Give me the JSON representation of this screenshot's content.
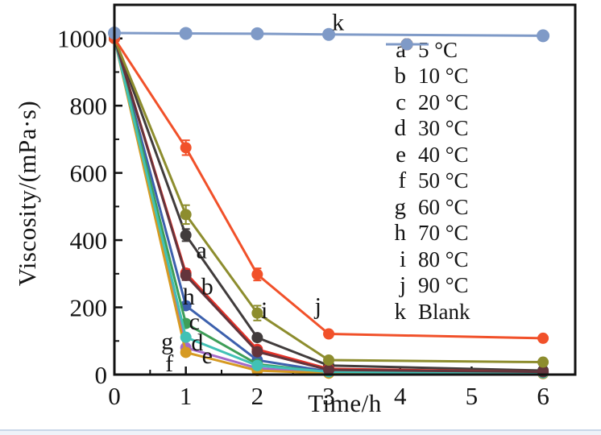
{
  "figure": {
    "background_color": "#ffffff",
    "axis_color": "#111111",
    "footer_strip_color": "#c9d7e8"
  },
  "chart_data": {
    "type": "line",
    "title": "",
    "xlabel": "Time/h",
    "ylabel": "Viscosity/(mPa·s)",
    "xlim": [
      0,
      6.45
    ],
    "ylim": [
      0,
      1100
    ],
    "x_ticks": [
      0,
      1,
      2,
      3,
      4,
      5,
      6
    ],
    "x_minor_ticks": [
      0.5,
      1.5,
      2.5,
      3.5,
      4.5,
      5.5
    ],
    "y_ticks": [
      0,
      200,
      400,
      600,
      800,
      1000
    ],
    "y_minor_ticks": [
      100,
      300,
      500,
      700,
      900
    ],
    "grid": "off",
    "legend_position": "upper right inside",
    "x": [
      0,
      1,
      2,
      3,
      6
    ],
    "series": [
      {
        "key": "a",
        "label": "5 °C",
        "color": "#413c3c",
        "values": [
          1000,
          415,
          110,
          27,
          12
        ],
        "errors": [
          0,
          18,
          10,
          0,
          0
        ]
      },
      {
        "key": "b",
        "label": "10 °C",
        "color": "#e53228",
        "values": [
          1000,
          302,
          75,
          17,
          8
        ],
        "errors": [
          0,
          12,
          0,
          0,
          0
        ]
      },
      {
        "key": "c",
        "label": "20 °C",
        "color": "#3c60ad",
        "values": [
          1000,
          205,
          43,
          9,
          5
        ],
        "errors": [
          0,
          10,
          0,
          0,
          0
        ]
      },
      {
        "key": "d",
        "label": "30 °C",
        "color": "#3e9e58",
        "values": [
          1000,
          152,
          31,
          7,
          4
        ],
        "errors": [
          0,
          9,
          0,
          0,
          0
        ]
      },
      {
        "key": "e",
        "label": "40 °C",
        "color": "#a46ac9",
        "values": [
          1000,
          80,
          19,
          5,
          3
        ],
        "errors": [
          0,
          6,
          0,
          0,
          0
        ]
      },
      {
        "key": "f",
        "label": "50 °C",
        "color": "#d69a22",
        "values": [
          1000,
          66,
          12,
          4,
          3
        ],
        "errors": [
          0,
          9,
          5,
          0,
          0
        ]
      },
      {
        "key": "g",
        "label": "60 °C",
        "color": "#41c1b5",
        "values": [
          1000,
          111,
          27,
          8,
          5
        ],
        "errors": [
          0,
          9,
          5,
          0,
          0
        ]
      },
      {
        "key": "h",
        "label": "70 °C",
        "color": "#63343c",
        "values": [
          1000,
          295,
          68,
          14,
          8
        ],
        "errors": [
          0,
          14,
          0,
          0,
          0
        ]
      },
      {
        "key": "i",
        "label": "80 °C",
        "color": "#8d8d2e",
        "values": [
          1000,
          476,
          183,
          43,
          37
        ],
        "errors": [
          0,
          28,
          22,
          8,
          0
        ]
      },
      {
        "key": "j",
        "label": "90 °C",
        "color": "#f1512a",
        "values": [
          1000,
          675,
          298,
          121,
          108
        ],
        "errors": [
          0,
          22,
          18,
          8,
          0
        ]
      },
      {
        "key": "k",
        "label": "Blank",
        "color": "#7f9ac7",
        "values": [
          1016,
          1015,
          1014,
          1012,
          1008
        ],
        "errors": [
          0,
          0,
          0,
          0,
          0
        ]
      }
    ],
    "annotations": [
      {
        "text": "a",
        "x": 1.22,
        "y": 370
      },
      {
        "text": "b",
        "x": 1.3,
        "y": 262
      },
      {
        "text": "c",
        "x": 1.12,
        "y": 158
      },
      {
        "text": "d",
        "x": 1.16,
        "y": 96
      },
      {
        "text": "e",
        "x": 1.3,
        "y": 57
      },
      {
        "text": "f",
        "x": 0.77,
        "y": 34
      },
      {
        "text": "g",
        "x": 0.74,
        "y": 100
      },
      {
        "text": "h",
        "x": 1.04,
        "y": 232
      },
      {
        "text": "i",
        "x": 2.1,
        "y": 192
      },
      {
        "text": "j",
        "x": 2.85,
        "y": 205
      },
      {
        "text": "k",
        "x": 3.13,
        "y": 1048
      }
    ]
  }
}
